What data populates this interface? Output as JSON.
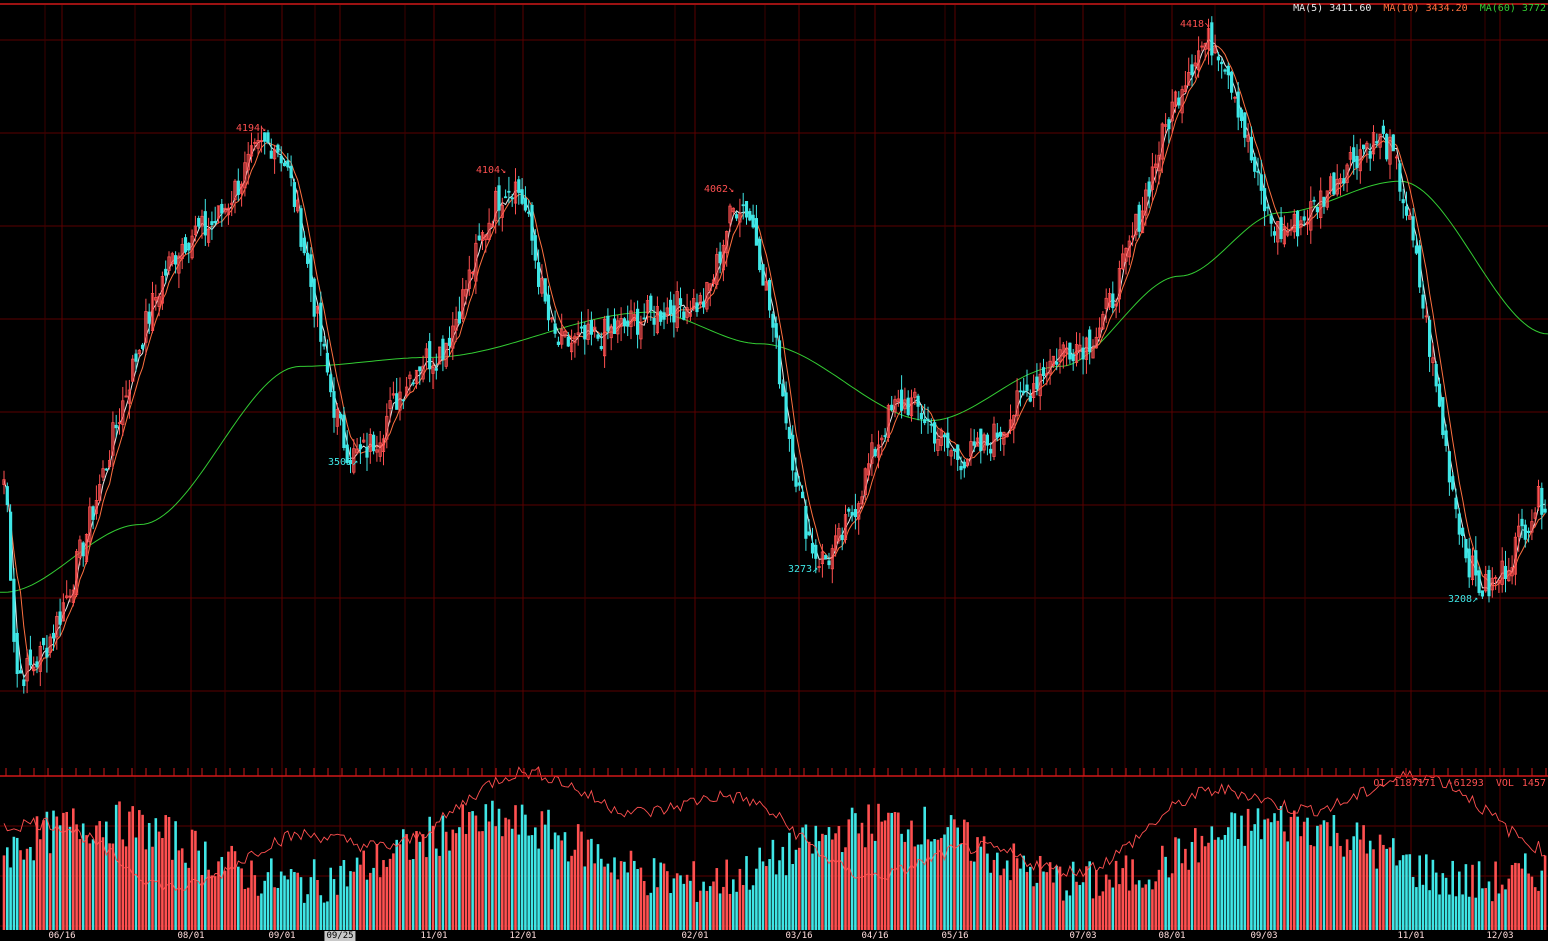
{
  "colors": {
    "background": "#000000",
    "grid": "#5a0000",
    "frame": "#d01818",
    "up": "#ff5050",
    "down": "#3fe6e6",
    "ma5": "#e8e8e8",
    "ma10": "#ff7040",
    "ma60": "#33cc33"
  },
  "legend": {
    "ma5_label": "MA(5)",
    "ma5_value": "3411.60",
    "ma10_label": "MA(10)",
    "ma10_value": "3434.20",
    "ma60_label": "MA(60)",
    "ma60_value": "3772"
  },
  "volume_legend": {
    "oi_label": "OI",
    "oi_value": "1187171",
    "oi_change": "-61293",
    "vol_label": "VOL",
    "vol_value": "1457"
  },
  "annotations": [
    {
      "text": "4194↘",
      "kind": "high"
    },
    {
      "text": "4104↘",
      "kind": "high"
    },
    {
      "text": "4062↘",
      "kind": "high"
    },
    {
      "text": "4418↘",
      "kind": "high"
    },
    {
      "text": "3503↗",
      "kind": "low"
    },
    {
      "text": "3273↗",
      "kind": "low"
    },
    {
      "text": "3208↗",
      "kind": "low"
    }
  ],
  "xticks": [
    "06/16",
    "08/01",
    "09/01",
    "09/25",
    "11/01",
    "12/01",
    "02/01",
    "03/16",
    "04/16",
    "05/16",
    "07/03",
    "08/01",
    "09/03",
    "11/01",
    "12/03"
  ],
  "chart_data": {
    "type": "candlestick",
    "title": "",
    "ylim": [
      2800,
      4500
    ],
    "grid": true,
    "legend_position": "top-right",
    "price_turning_points": [
      {
        "date": "06/16",
        "price": 3450
      },
      {
        "date": "06/16",
        "price": 3020
      },
      {
        "date": "08/01",
        "price": 4000
      },
      {
        "date": "09/01",
        "price": 4194
      },
      {
        "date": "09/25",
        "price": 3503
      },
      {
        "date": "11/01",
        "price": 3720
      },
      {
        "date": "12/01",
        "price": 4104
      },
      {
        "date": "12/01",
        "price": 3750
      },
      {
        "date": "02/01",
        "price": 3840
      },
      {
        "date": "02/01",
        "price": 4062
      },
      {
        "date": "03/16",
        "price": 3273
      },
      {
        "date": "04/16",
        "price": 3620
      },
      {
        "date": "05/16",
        "price": 3500
      },
      {
        "date": "07/03",
        "price": 3750
      },
      {
        "date": "08/01",
        "price": 4418
      },
      {
        "date": "09/03",
        "price": 4000
      },
      {
        "date": "11/01",
        "price": 4200
      },
      {
        "date": "12/03",
        "price": 3208
      },
      {
        "date": "12/03",
        "price": 3412
      }
    ],
    "ma60_turning_points": [
      {
        "date": "06/16",
        "value": 3200
      },
      {
        "date": "08/01",
        "value": 3350
      },
      {
        "date": "09/01",
        "value": 3700
      },
      {
        "date": "11/01",
        "value": 3720
      },
      {
        "date": "02/01",
        "value": 3820
      },
      {
        "date": "03/16",
        "value": 3750
      },
      {
        "date": "05/16",
        "value": 3580
      },
      {
        "date": "07/03",
        "value": 3700
      },
      {
        "date": "08/01",
        "value": 3900
      },
      {
        "date": "09/03",
        "value": 4040
      },
      {
        "date": "11/01",
        "value": 4110
      },
      {
        "date": "12/03",
        "value": 3772
      }
    ],
    "series": [
      {
        "name": "MA(5)",
        "last_value": 3411.6
      },
      {
        "name": "MA(10)",
        "last_value": 3434.2
      },
      {
        "name": "MA(60)",
        "last_value": 3772
      }
    ],
    "volume": {
      "last_value": 1457
    },
    "open_interest": {
      "last_value": 1187171,
      "change": -61293
    }
  }
}
